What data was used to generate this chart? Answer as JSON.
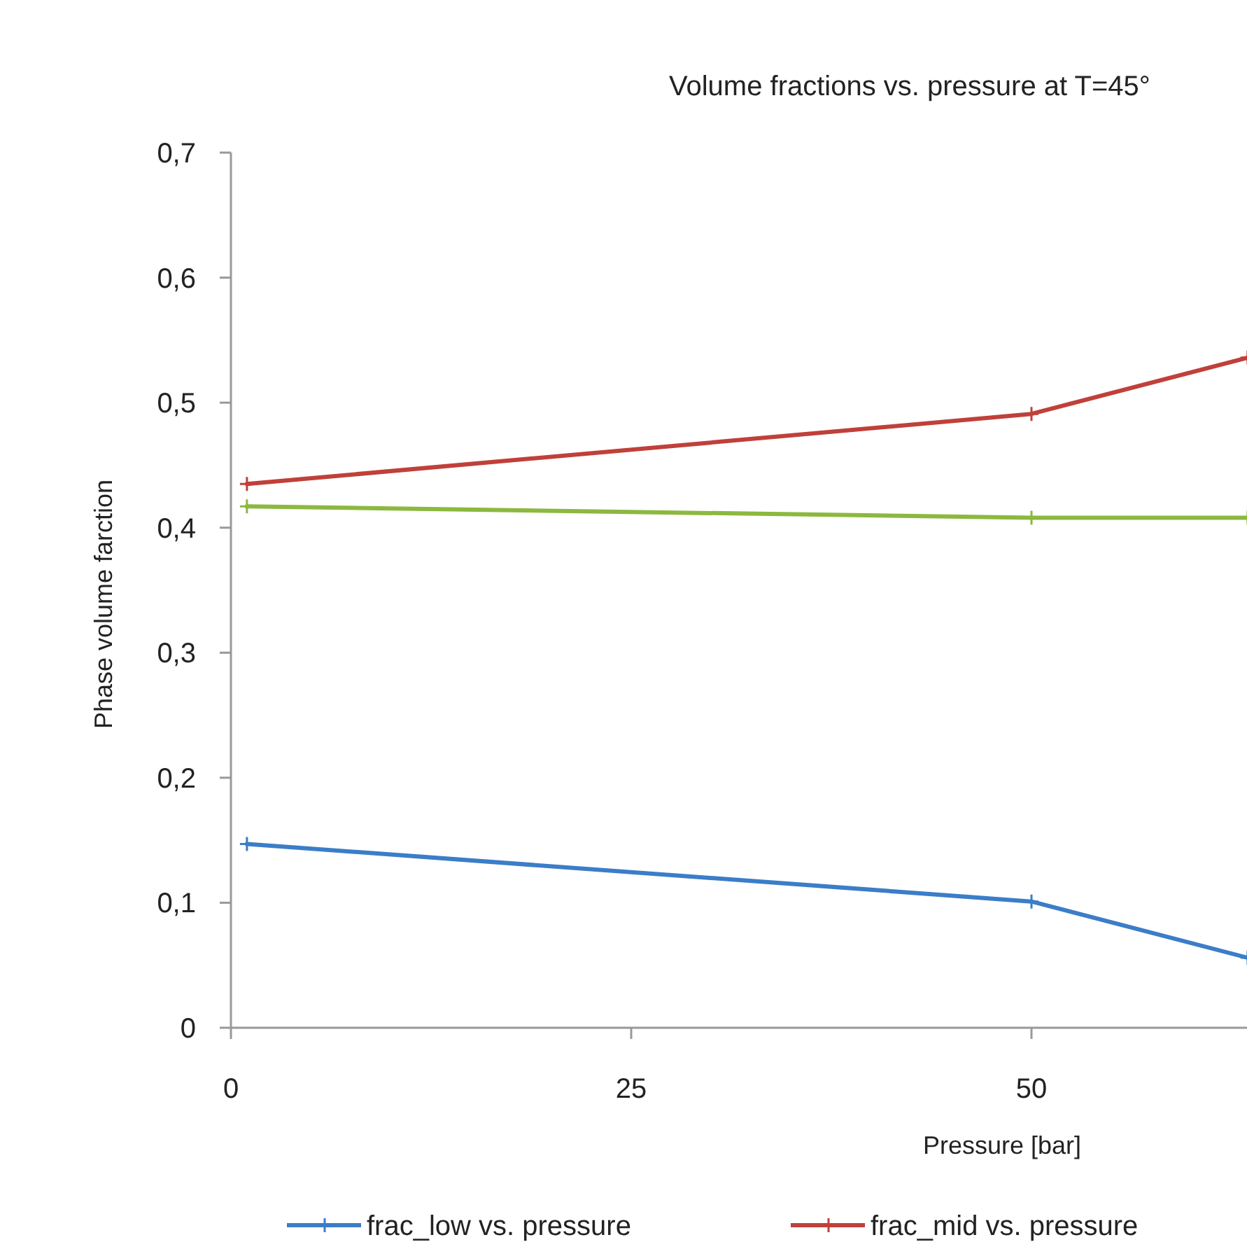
{
  "chart_data": {
    "type": "line",
    "title": "Volume fractions vs. pressure at T=45°",
    "xlabel": "Pressure [bar]",
    "ylabel": "Phase volume farction",
    "xlim": [
      0,
      63.5
    ],
    "xticks": [
      0,
      25,
      50
    ],
    "ylim": [
      0,
      0.7
    ],
    "yticks": [
      0,
      {
        "value": 0.1,
        "label": "0,1"
      },
      {
        "value": 0.2,
        "label": "0,2"
      },
      {
        "value": 0.3,
        "label": "0,3"
      },
      {
        "value": 0.4,
        "label": "0,4"
      },
      {
        "value": 0.5,
        "label": "0,5"
      },
      {
        "value": 0.6,
        "label": "0,6"
      },
      {
        "value": 0.7,
        "label": "0,7"
      }
    ],
    "x": [
      1,
      50,
      63.5
    ],
    "series": [
      {
        "name": "frac_low vs. pressure",
        "color": "#3b7dc8",
        "values": [
          0.147,
          0.101,
          0.056
        ]
      },
      {
        "name": "frac_mid vs. pressure",
        "color": "#c0403a",
        "values": [
          0.435,
          0.491,
          0.536
        ]
      },
      {
        "color": "#8cb83f",
        "values": [
          0.417,
          0.408,
          0.408
        ]
      }
    ],
    "marker": "cross",
    "line_style": "solid",
    "grid": false,
    "legend": "bottom"
  }
}
